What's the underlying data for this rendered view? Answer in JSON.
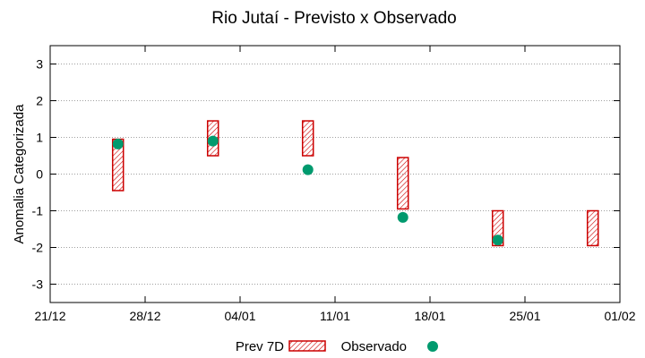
{
  "chart_data": {
    "type": "range-and-scatter",
    "title": "Rio Jutaí - Previsto x Observado",
    "xlabel": "",
    "ylabel": "Anomalia Categorizada",
    "x_ticks": [
      "21/12",
      "28/12",
      "04/01",
      "11/01",
      "18/01",
      "25/01",
      "01/02"
    ],
    "xlim": [
      "21/12",
      "01/02"
    ],
    "ylim": [
      -3.5,
      3.5
    ],
    "y_ticks": [
      -3,
      -2,
      -1,
      0,
      1,
      2,
      3
    ],
    "grid": true,
    "legend_position": "bottom-center",
    "series": [
      {
        "name": "Prev 7D",
        "kind": "range",
        "color": "#cc0000",
        "points": [
          {
            "x": "26/12",
            "low": -0.45,
            "high": 0.95
          },
          {
            "x": "02/01",
            "low": 0.5,
            "high": 1.45
          },
          {
            "x": "09/01",
            "low": 0.5,
            "high": 1.45
          },
          {
            "x": "16/01",
            "low": -0.95,
            "high": 0.45
          },
          {
            "x": "23/01",
            "low": -1.95,
            "high": -1.0
          },
          {
            "x": "30/01",
            "low": -1.95,
            "high": -1.0
          }
        ]
      },
      {
        "name": "Observado",
        "kind": "scatter",
        "color": "#009a6e",
        "points": [
          {
            "x": "26/12",
            "y": 0.82
          },
          {
            "x": "02/01",
            "y": 0.9
          },
          {
            "x": "09/01",
            "y": 0.12
          },
          {
            "x": "16/01",
            "y": -1.18
          },
          {
            "x": "23/01",
            "y": -1.8
          }
        ]
      }
    ]
  }
}
